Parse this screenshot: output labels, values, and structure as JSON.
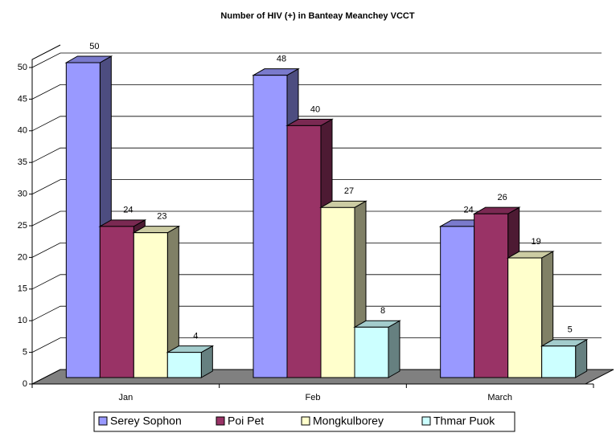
{
  "chart_data": {
    "type": "bar3d",
    "title": "Number of HIV (+) in Banteay Meanchey VCCT",
    "categories": [
      "Jan",
      "Feb",
      "March"
    ],
    "series": [
      {
        "name": "Serey Sophon",
        "color": "#9999ff",
        "values": [
          50,
          48,
          24
        ]
      },
      {
        "name": "Poi Pet",
        "color": "#993366",
        "values": [
          24,
          40,
          26
        ]
      },
      {
        "name": "Mongkulborey",
        "color": "#ffffcc",
        "values": [
          23,
          27,
          19
        ]
      },
      {
        "name": "Thmar Puok",
        "color": "#ccffff",
        "values": [
          4,
          8,
          5
        ]
      }
    ],
    "ylim": [
      0,
      50
    ],
    "yticks": [
      0,
      5,
      10,
      15,
      20,
      25,
      30,
      35,
      40,
      45,
      50
    ],
    "grid": true,
    "legend": "bottom"
  }
}
